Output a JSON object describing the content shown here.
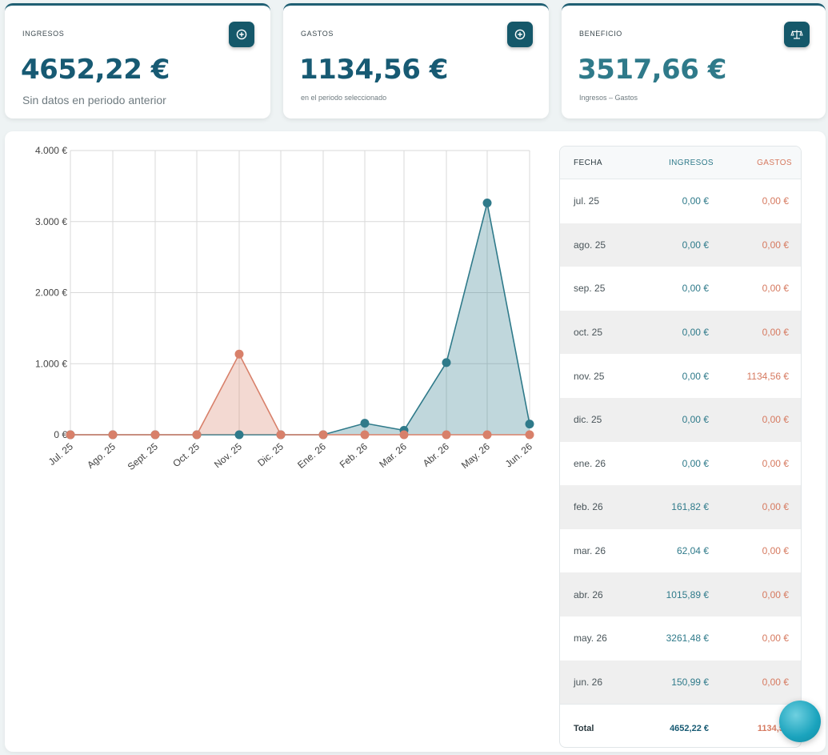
{
  "cards": {
    "ingresos": {
      "label": "INGRESOS",
      "value": "4652,22 €",
      "sub": "Sin datos en periodo anterior",
      "icon": "plus-circle-icon"
    },
    "gastos": {
      "label": "GASTOS",
      "value": "1134,56 €",
      "sub": "en el periodo seleccionado",
      "icon": "plus-circle-icon"
    },
    "beneficio": {
      "label": "BENEFICIO",
      "value": "3517,66 €",
      "sub": "Ingresos – Gastos",
      "icon": "scale-icon"
    }
  },
  "chart_data": {
    "type": "area",
    "categories": [
      "Jul. 25",
      "Ago. 25",
      "Sept. 25",
      "Oct. 25",
      "Nov. 25",
      "Dic. 25",
      "Ene. 26",
      "Feb. 26",
      "Mar. 26",
      "Abr. 26",
      "May. 26",
      "Jun. 26"
    ],
    "series": [
      {
        "values": [
          0,
          0,
          0,
          0,
          0,
          0,
          0,
          161.82,
          62.04,
          1015.89,
          3261.48,
          150.99
        ],
        "color": "#2f7a8a"
      },
      {
        "values": [
          0,
          0,
          0,
          0,
          1134.56,
          0,
          0,
          0,
          0,
          0,
          0,
          0
        ],
        "color": "#d8806a"
      }
    ],
    "yticks": [
      "0 €",
      "1.000 €",
      "2.000 €",
      "3.000 €",
      "4.000 €"
    ],
    "ylim": [
      0,
      4000
    ],
    "grid": true,
    "legend": "none"
  },
  "table": {
    "headers": {
      "fecha": "FECHA",
      "ingresos": "INGRESOS",
      "gastos": "GASTOS"
    },
    "rows": [
      {
        "fecha": "jul. 25",
        "ingresos": "0,00 €",
        "gastos": "0,00 €"
      },
      {
        "fecha": "ago. 25",
        "ingresos": "0,00 €",
        "gastos": "0,00 €"
      },
      {
        "fecha": "sep. 25",
        "ingresos": "0,00 €",
        "gastos": "0,00 €"
      },
      {
        "fecha": "oct. 25",
        "ingresos": "0,00 €",
        "gastos": "0,00 €"
      },
      {
        "fecha": "nov. 25",
        "ingresos": "0,00 €",
        "gastos": "1134,56 €"
      },
      {
        "fecha": "dic. 25",
        "ingresos": "0,00 €",
        "gastos": "0,00 €"
      },
      {
        "fecha": "ene. 26",
        "ingresos": "0,00 €",
        "gastos": "0,00 €"
      },
      {
        "fecha": "feb. 26",
        "ingresos": "161,82 €",
        "gastos": "0,00 €"
      },
      {
        "fecha": "mar. 26",
        "ingresos": "62,04 €",
        "gastos": "0,00 €"
      },
      {
        "fecha": "abr. 26",
        "ingresos": "1015,89 €",
        "gastos": "0,00 €"
      },
      {
        "fecha": "may. 26",
        "ingresos": "3261,48 €",
        "gastos": "0,00 €"
      },
      {
        "fecha": "jun. 26",
        "ingresos": "150,99 €",
        "gastos": "0,00 €"
      }
    ],
    "total": {
      "fecha": "Total",
      "ingresos": "4652,22 €",
      "gastos": "1134,56"
    }
  },
  "fab": {
    "icon": "chat-bubble-icon"
  }
}
